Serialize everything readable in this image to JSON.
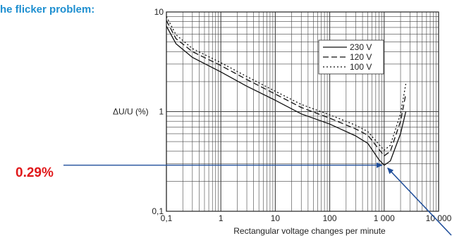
{
  "heading": "he flicker problem:",
  "callout_label": "0.29%",
  "colors": {
    "heading": "#1e8fd0",
    "callout": "#e0191b",
    "arrow": "#1f4e9a",
    "grid": "#444444"
  },
  "chart_data": {
    "type": "line",
    "xscale": "log",
    "yscale": "log",
    "xlim": [
      0.1,
      10000
    ],
    "ylim": [
      0.1,
      10
    ],
    "grid": true,
    "legend_position": "top-right",
    "xlabel": "Rectangular voltage changes per minute",
    "ylabel": "ΔU/U (%)",
    "x_ticks": [
      {
        "value": 0.1,
        "label": "0,1"
      },
      {
        "value": 1,
        "label": "1"
      },
      {
        "value": 10,
        "label": "10"
      },
      {
        "value": 100,
        "label": "100"
      },
      {
        "value": 1000,
        "label": "1 000"
      },
      {
        "value": 10000,
        "label": "10 000"
      }
    ],
    "y_ticks": [
      {
        "value": 0.1,
        "label": "0,1"
      },
      {
        "value": 1,
        "label": "1"
      },
      {
        "value": 10,
        "label": "10"
      }
    ],
    "series": [
      {
        "name": "230 V",
        "dash": "solid",
        "points": [
          [
            0.1,
            7.2
          ],
          [
            0.15,
            4.8
          ],
          [
            0.3,
            3.5
          ],
          [
            1,
            2.5
          ],
          [
            3,
            1.8
          ],
          [
            10,
            1.3
          ],
          [
            30,
            0.95
          ],
          [
            100,
            0.75
          ],
          [
            300,
            0.57
          ],
          [
            500,
            0.48
          ],
          [
            800,
            0.33
          ],
          [
            1000,
            0.29
          ],
          [
            1300,
            0.32
          ],
          [
            2000,
            0.6
          ],
          [
            2500,
            1.0
          ]
        ]
      },
      {
        "name": "120 V",
        "dash": "dashed",
        "points": [
          [
            0.1,
            8.2
          ],
          [
            0.15,
            5.4
          ],
          [
            0.3,
            4.0
          ],
          [
            1,
            2.9
          ],
          [
            3,
            2.1
          ],
          [
            10,
            1.5
          ],
          [
            30,
            1.1
          ],
          [
            100,
            0.86
          ],
          [
            300,
            0.67
          ],
          [
            500,
            0.58
          ],
          [
            800,
            0.42
          ],
          [
            1000,
            0.36
          ],
          [
            1300,
            0.4
          ],
          [
            2000,
            0.8
          ],
          [
            2500,
            1.5
          ]
        ]
      },
      {
        "name": "100 V",
        "dash": "dotted",
        "points": [
          [
            0.1,
            9.0
          ],
          [
            0.15,
            5.9
          ],
          [
            0.3,
            4.3
          ],
          [
            1,
            3.1
          ],
          [
            3,
            2.25
          ],
          [
            10,
            1.6
          ],
          [
            30,
            1.18
          ],
          [
            100,
            0.93
          ],
          [
            300,
            0.73
          ],
          [
            500,
            0.63
          ],
          [
            800,
            0.47
          ],
          [
            1000,
            0.41
          ],
          [
            1300,
            0.46
          ],
          [
            2000,
            0.95
          ],
          [
            2500,
            1.9
          ]
        ]
      }
    ],
    "annotation": {
      "x": 1000,
      "y": 0.29,
      "label": "0.29%"
    }
  }
}
